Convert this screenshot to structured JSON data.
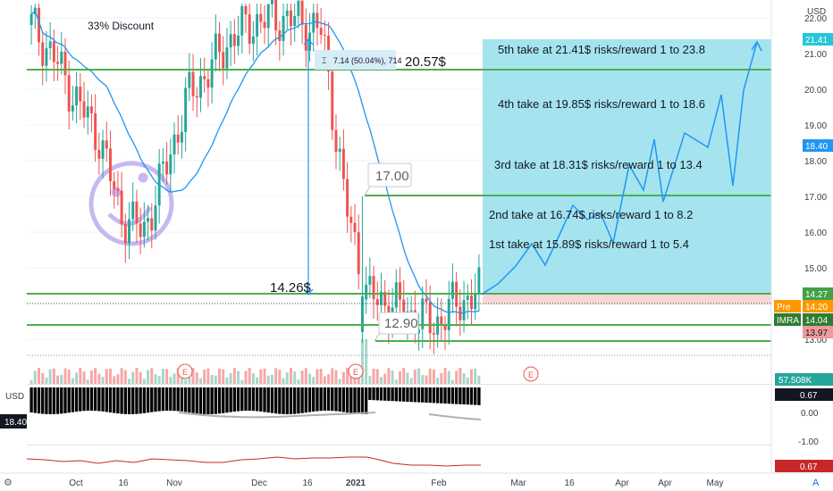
{
  "header": {
    "currency": "USD",
    "currency_lower": "USD"
  },
  "overlay_text": {
    "discount": "33% Discount",
    "measure": "7.14 (50.04%), 714",
    "level_2057": "20.57$",
    "level_1426": "14.26$",
    "callout_17": "17.00",
    "callout_1290": "12.90",
    "take_5": "5th take at 21.41$ risks/reward 1 to 23.8",
    "take_4": "4th take at 19.85$ risks/reward 1 to 18.6",
    "take_3": "3rd  take at 18.31$ risks/reward 1 to 13.4",
    "take_2": "2nd take at 16.74$ risks/reward 1 to 8.2",
    "take_1": "1st take at 15.89$ risks/reward 1 to 5.4",
    "earnings_1": "E",
    "earnings_2": "E",
    "earnings_3": "E"
  },
  "price_axis": {
    "ticks": [
      "22.00",
      "21.00",
      "20.00",
      "19.00",
      "18.00",
      "17.00",
      "16.00",
      "15.00",
      "14.00",
      "13.00"
    ],
    "top_partial": "21.41",
    "badges": [
      {
        "label": "21.41",
        "color": "#26c6da"
      },
      {
        "label": "18.40",
        "color": "#2196f3"
      },
      {
        "label": "14.27",
        "color": "#43a047"
      },
      {
        "label": "Pre",
        "color": "#ff9800"
      },
      {
        "label": "14.20",
        "color": "#ff9800"
      },
      {
        "label": "IMRA",
        "color": "#2e7d32"
      },
      {
        "label": "14.04",
        "color": "#2e7d32"
      },
      {
        "label": "13.97",
        "color": "#ef9a9a"
      }
    ]
  },
  "volume_axis": {
    "label": "57.508K"
  },
  "indicator_axis": {
    "ticks": [
      "0.67",
      "0.00",
      "-1.00"
    ],
    "bottom_badge": "0.67",
    "left_badge": "18.40"
  },
  "time_axis": {
    "ticks": [
      "Oct",
      "16",
      "Nov",
      "Dec",
      "16",
      "2021",
      "Feb",
      "Mar",
      "16",
      "Apr",
      "Apr",
      "May"
    ]
  },
  "colors": {
    "up": "#26a69a",
    "down": "#ef5350",
    "ma": "#2196f3",
    "levels": "#4caf50",
    "target_zone": "#a5e4ef",
    "stop_zone": "#f8d7d7"
  },
  "chart_data": {
    "type": "candlestick",
    "symbol": "IMRA",
    "x": [
      "Sep 28",
      "Oct 5",
      "Oct 12",
      "Oct 19",
      "Oct 26",
      "Nov 2",
      "Nov 9",
      "Nov 16",
      "Nov 23",
      "Nov 30",
      "Dec 7",
      "Dec 14",
      "Dec 21",
      "Dec 28",
      "Jan 4",
      "Jan 11",
      "Jan 18",
      "Jan 25",
      "Feb 1",
      "Feb 8",
      "Feb 15"
    ],
    "close": [
      21.8,
      20.9,
      19.7,
      18.7,
      16.5,
      16.0,
      17.8,
      19.8,
      20.6,
      21.5,
      21.9,
      22.0,
      21.9,
      21.6,
      16.9,
      14.2,
      14.0,
      13.7,
      13.4,
      14.0,
      14.3
    ],
    "ylim": [
      12.0,
      22.2
    ],
    "levels": [
      20.57,
      17.0,
      14.26,
      13.97,
      13.6,
      13.0
    ],
    "targets": [
      15.89,
      16.74,
      18.31,
      19.85,
      21.41
    ],
    "projection": [
      [
        "Feb 19",
        14.2
      ],
      [
        "Mar 1",
        15.2
      ],
      [
        "Mar 16",
        16.9
      ],
      [
        "Apr 1",
        16.7
      ],
      [
        "Apr 16",
        18.4
      ],
      [
        "May 1",
        19.7
      ],
      [
        "May 16",
        21.4
      ]
    ]
  }
}
